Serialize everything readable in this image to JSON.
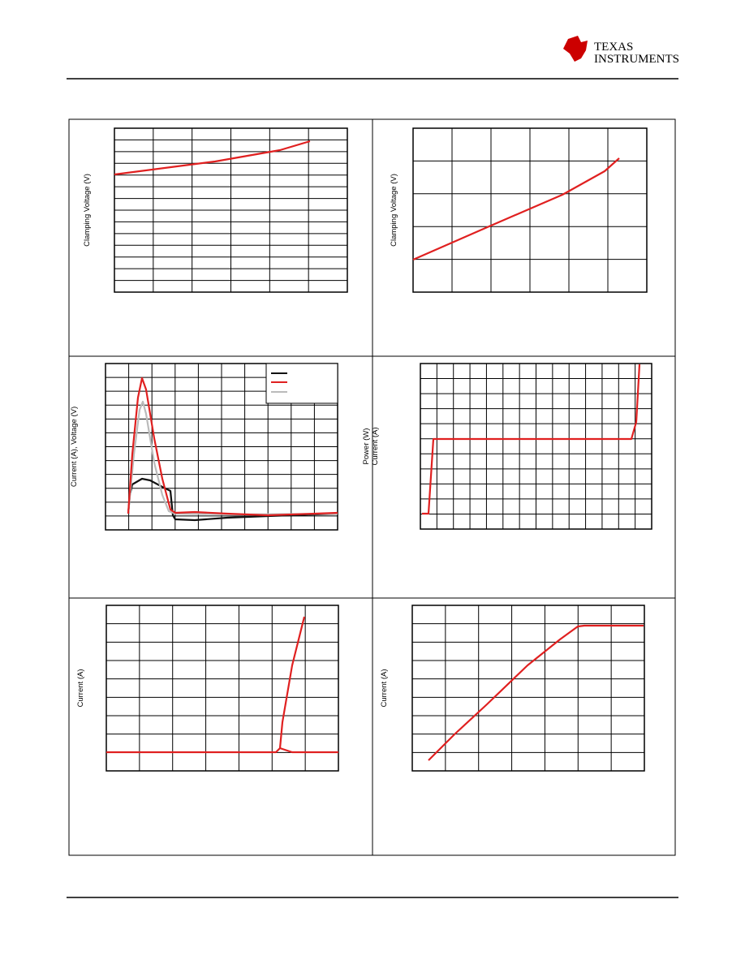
{
  "header": {
    "logo_line1": "TEXAS",
    "logo_line2": "INSTRUMENTS"
  },
  "charts": [
    {
      "ylabel": "Clamping Voltage (V)"
    },
    {
      "ylabel": "Clamping Voltage (V)"
    },
    {
      "ylabel": "Current (A), Voltage (V)"
    },
    {
      "ylabel": [
        "Power (W)",
        "Current (A)"
      ]
    },
    {
      "ylabel": "Current (A)"
    },
    {
      "ylabel": "Current (A)"
    }
  ]
}
